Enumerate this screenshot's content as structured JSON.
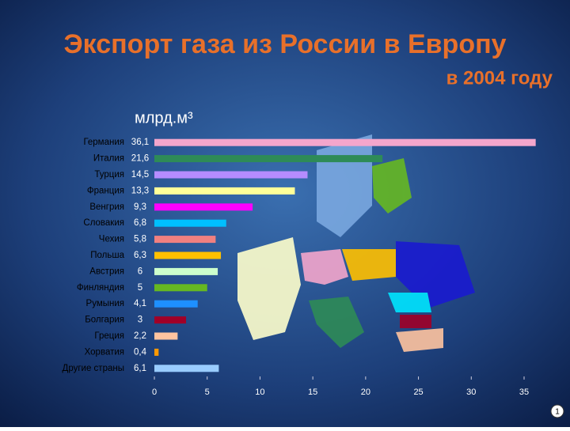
{
  "chart_data": {
    "type": "bar",
    "orientation": "horizontal",
    "title": "Экспорт газа из России в Европу",
    "subtitle": "в 2004 году",
    "unit_label": "млрд.м³",
    "categories": [
      "Германия",
      "Италия",
      "Турция",
      "Франция",
      "Венгрия",
      "Словакия",
      "Чехия",
      "Польша",
      "Австрия",
      "Финляндия",
      "Румыния",
      "Болгария",
      "Греция",
      "Хорватия",
      "Другие страны"
    ],
    "values": [
      36.1,
      21.6,
      14.5,
      13.3,
      9.3,
      6.8,
      5.8,
      6.3,
      6,
      5,
      4.1,
      3,
      2.2,
      0.4,
      6.1
    ],
    "value_labels": [
      "36,1",
      "21,6",
      "14,5",
      "13,3",
      "9,3",
      "6,8",
      "5,8",
      "6,3",
      "6",
      "5",
      "4,1",
      "3",
      "2,2",
      "0,4",
      "6,1"
    ],
    "colors": [
      "#f4a6cc",
      "#2e8b57",
      "#b58cff",
      "#ffff99",
      "#ff00ff",
      "#00bfff",
      "#f08080",
      "#ffc000",
      "#ccffcc",
      "#66b822",
      "#1e90ff",
      "#a00028",
      "#ffc4a0",
      "#ff9900",
      "#99ccff"
    ],
    "xlim": [
      0,
      35
    ],
    "xticks": [
      0,
      5,
      10,
      15,
      20,
      25,
      30,
      35
    ],
    "page_number": "1"
  }
}
